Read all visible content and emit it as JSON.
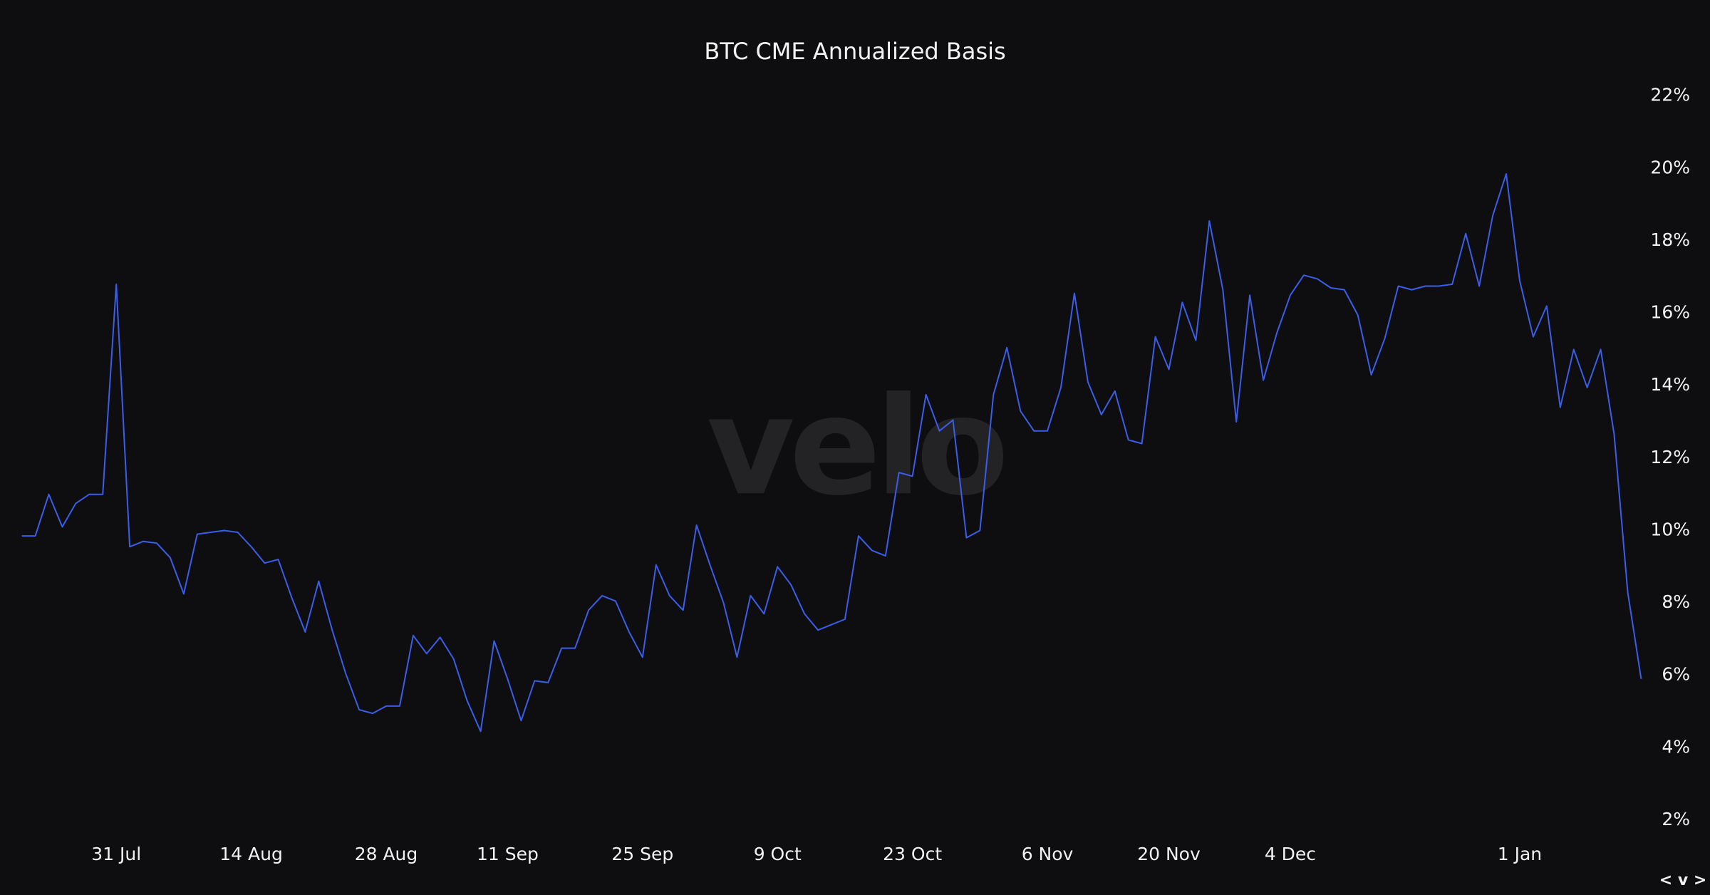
{
  "chart_data": {
    "type": "line",
    "title": "BTC CME Annualized Basis",
    "watermark": "velo",
    "toggle": "< v >",
    "categories": [
      null,
      null,
      null,
      null,
      null,
      null,
      null,
      "31 Jul",
      null,
      null,
      null,
      null,
      null,
      null,
      null,
      null,
      null,
      "14 Aug",
      null,
      null,
      null,
      null,
      null,
      null,
      null,
      null,
      null,
      "28 Aug",
      null,
      null,
      null,
      null,
      null,
      null,
      null,
      null,
      "11 Sep",
      null,
      null,
      null,
      null,
      null,
      null,
      null,
      null,
      null,
      "25 Sep",
      null,
      null,
      null,
      null,
      null,
      null,
      null,
      null,
      null,
      "9 Oct",
      null,
      null,
      null,
      null,
      null,
      null,
      null,
      null,
      null,
      "23 Oct",
      null,
      null,
      null,
      null,
      null,
      null,
      null,
      null,
      null,
      "6 Nov",
      null,
      null,
      null,
      null,
      null,
      null,
      null,
      null,
      "20 Nov",
      null,
      null,
      null,
      null,
      null,
      null,
      null,
      null,
      "4 Dec",
      null,
      null,
      null,
      null,
      null,
      null,
      null,
      null,
      null,
      null,
      null,
      null,
      null,
      null,
      null,
      null,
      "1 Jan",
      null,
      null,
      null,
      null,
      null,
      null,
      null,
      null,
      null
    ],
    "series": [
      {
        "name": "BTC CME Annualized Basis",
        "color": "#3a5ee8",
        "values": [
          9.85,
          9.85,
          11.0,
          10.1,
          10.75,
          11.0,
          11.0,
          16.8,
          9.55,
          9.7,
          9.65,
          9.25,
          8.25,
          9.9,
          9.95,
          10.0,
          9.95,
          9.55,
          9.1,
          9.2,
          8.15,
          7.2,
          8.6,
          7.25,
          6.05,
          5.05,
          4.95,
          5.15,
          5.15,
          7.1,
          6.6,
          7.05,
          6.45,
          5.3,
          4.45,
          6.95,
          5.9,
          4.75,
          5.85,
          5.8,
          6.75,
          6.75,
          7.8,
          8.2,
          8.05,
          7.2,
          6.5,
          9.05,
          8.2,
          7.8,
          10.15,
          9.05,
          8.0,
          6.5,
          8.2,
          7.7,
          9.0,
          8.5,
          7.7,
          7.25,
          7.4,
          7.55,
          9.85,
          9.45,
          9.3,
          11.6,
          11.5,
          13.75,
          12.75,
          13.05,
          9.8,
          10.0,
          13.75,
          15.05,
          13.3,
          12.75,
          12.75,
          13.95,
          16.55,
          14.1,
          13.2,
          13.85,
          12.5,
          12.4,
          15.35,
          14.45,
          16.3,
          15.25,
          18.55,
          16.65,
          13.0,
          16.5,
          14.15,
          15.45,
          16.5,
          17.05,
          16.95,
          16.7,
          16.65,
          15.95,
          14.3,
          15.3,
          16.75,
          16.65,
          16.75,
          16.75,
          16.8,
          18.2,
          16.75,
          18.7,
          19.85,
          16.9,
          15.35,
          16.2,
          13.4,
          15.0,
          13.95,
          15.0,
          12.65,
          8.3,
          5.9
        ]
      }
    ],
    "ylim": [
      2,
      22
    ],
    "yticks": [
      {
        "value": 2,
        "label": "2%"
      },
      {
        "value": 4,
        "label": "4%"
      },
      {
        "value": 6,
        "label": "6%"
      },
      {
        "value": 8,
        "label": "8%"
      },
      {
        "value": 10,
        "label": "10%"
      },
      {
        "value": 12,
        "label": "12%"
      },
      {
        "value": 14,
        "label": "14%"
      },
      {
        "value": 16,
        "label": "16%"
      },
      {
        "value": 18,
        "label": "18%"
      },
      {
        "value": 20,
        "label": "20%"
      },
      {
        "value": 22,
        "label": "22%"
      }
    ],
    "grid": false
  }
}
